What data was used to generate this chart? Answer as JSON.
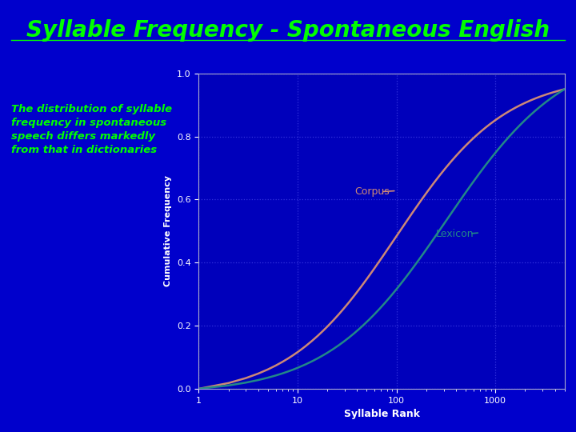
{
  "title": "Syllable Frequency - Spontaneous English",
  "title_color": "#00FF00",
  "title_fontsize": 20,
  "background_color": "#0000CC",
  "plot_bg_color": "#0000BB",
  "annotation_text": "The distribution of syllable\nfrequency in spontaneous\nspeech differs markedly\nfrom that in dictionaries",
  "annotation_color": "#00FF00",
  "annotation_fontsize": 9.5,
  "xlabel": "Syllable Rank",
  "ylabel": "Cumulative Frequency",
  "xlabel_color": "#FFFFFF",
  "ylabel_color": "#FFFFFF",
  "tick_color": "#FFFFFF",
  "grid_color": "#3333DD",
  "corpus_color": "#CC8877",
  "lexicon_color": "#228888",
  "corpus_label": "Corpus",
  "lexicon_label": "Lexicon",
  "ylim": [
    0.0,
    1.0
  ],
  "xlim_log": [
    1,
    5000
  ],
  "yticks": [
    0.0,
    0.2,
    0.4,
    0.6,
    0.8,
    1.0
  ]
}
